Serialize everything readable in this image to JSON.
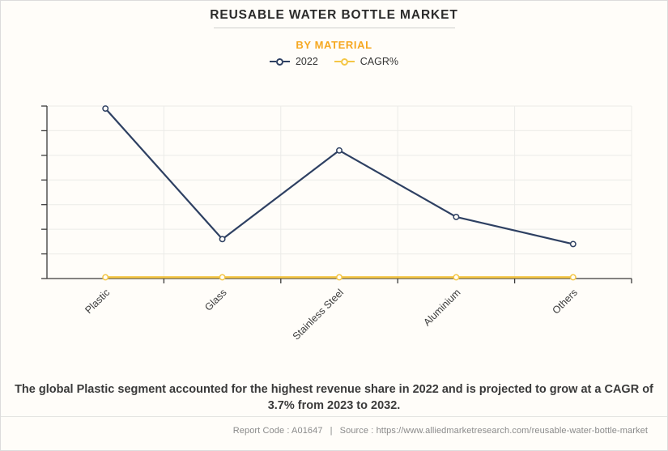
{
  "header": {
    "title": "REUSABLE WATER BOTTLE MARKET",
    "subtitle": "BY MATERIAL"
  },
  "chart_data": {
    "type": "line",
    "title": "REUSABLE WATER BOTTLE MARKET",
    "subtitle": "BY MATERIAL",
    "categories": [
      "Plastic",
      "Glass",
      "Stainless Steel",
      "Aluminium",
      "Others"
    ],
    "series": [
      {
        "name": "2022",
        "color": "#2E4062",
        "marker": "circle",
        "values": [
          6.9,
          1.6,
          5.2,
          2.5,
          1.4
        ]
      },
      {
        "name": "CAGR%",
        "color": "#F4C645",
        "marker": "circle",
        "values": [
          0.05,
          0.05,
          0.05,
          0.05,
          0.05
        ]
      }
    ],
    "ylim": [
      0,
      7
    ],
    "y_axis_labels_visible": false,
    "gridlines": true,
    "legend_position": "top",
    "note": "Y axis has tick marks but no numeric labels; 2022 values estimated in gridline units. CAGR% series renders flat along the baseline."
  },
  "summary": {
    "text": "The global Plastic segment accounted for the highest revenue share in 2022 and is projected to grow at a CAGR of 3.7% from 2023 to 2032."
  },
  "footer": {
    "report_code": "Report Code : A01647",
    "separator": "|",
    "source": "Source : https://www.alliedmarketresearch.com/reusable-water-bottle-market"
  },
  "colors": {
    "background": "#FFFDF9",
    "accent_orange": "#F6A821",
    "series_2022": "#2E4062",
    "series_cagr": "#F4C645",
    "grid": "#EBEBE8",
    "axis": "#333333"
  }
}
